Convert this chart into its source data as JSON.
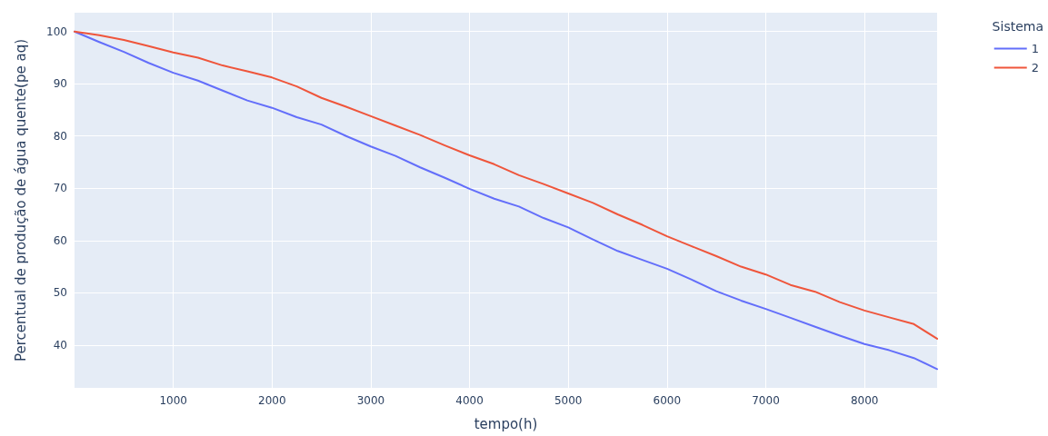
{
  "chart_data": {
    "type": "line",
    "xlabel": "tempo(h)",
    "ylabel": "Percentual de produção de água quente(pe aq)",
    "legend_title": "Sistema",
    "legend": "top right",
    "grid": true,
    "marker": "none",
    "line_style": "solid",
    "xlim": [
      0,
      8735
    ],
    "xticks": [
      1000,
      2000,
      3000,
      4000,
      5000,
      6000,
      7000,
      8000
    ],
    "ylim": [
      31.8,
      103.6
    ],
    "yticks": [
      40,
      50,
      60,
      70,
      80,
      90,
      100
    ],
    "x": [
      0,
      250,
      500,
      750,
      1000,
      1250,
      1500,
      1750,
      2000,
      2250,
      2500,
      2750,
      3000,
      3250,
      3500,
      3750,
      4000,
      4250,
      4500,
      4750,
      5000,
      5250,
      5500,
      5750,
      6000,
      6250,
      6500,
      6750,
      7000,
      7250,
      7500,
      7750,
      8000,
      8250,
      8500,
      8735
    ],
    "series": [
      {
        "name": "1",
        "color": "#636efa",
        "values": [
          100,
          98,
          96.1,
          94,
          92.1,
          90.6,
          88.7,
          86.8,
          85.4,
          83.6,
          82.2,
          80,
          78,
          76.2,
          74,
          72,
          69.9,
          68,
          66.5,
          64.3,
          62.5,
          60.2,
          58,
          56.3,
          54.6,
          52.5,
          50.3,
          48.5,
          46.9,
          45.2,
          43.5,
          41.8,
          40.2,
          39,
          37.5,
          35.4
        ]
      },
      {
        "name": "2",
        "color": "#ef553b",
        "values": [
          100,
          99.3,
          98.4,
          97.2,
          96,
          95,
          93.5,
          92.4,
          91.2,
          89.5,
          87.3,
          85.6,
          83.8,
          82,
          80.2,
          78.2,
          76.3,
          74.6,
          72.5,
          70.8,
          69,
          67.2,
          65,
          63,
          60.8,
          58.9,
          57,
          55,
          53.5,
          51.5,
          50.2,
          48.2,
          46.6,
          45.3,
          44,
          41.2
        ]
      }
    ]
  }
}
